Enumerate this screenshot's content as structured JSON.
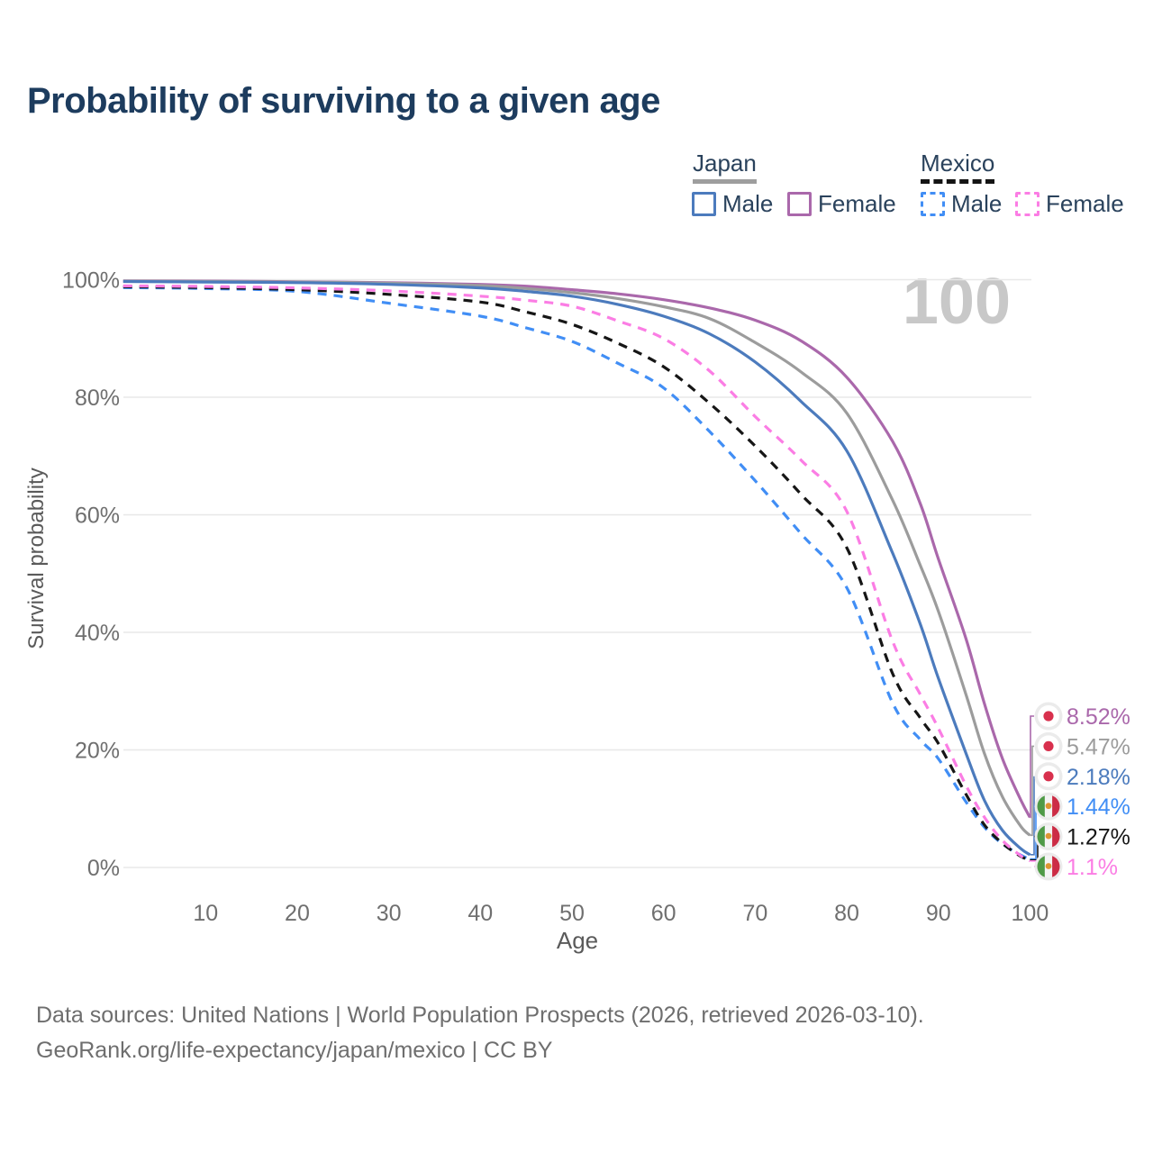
{
  "title": "Probability of surviving to a given age",
  "watermark": "100",
  "legend": {
    "groups": [
      {
        "name": "Japan",
        "style": "solid",
        "underline_color": "#9e9e9e",
        "items": [
          {
            "label": "Male",
            "color": "#4c7bbd"
          },
          {
            "label": "Female",
            "color": "#aa68ab"
          }
        ]
      },
      {
        "name": "Mexico",
        "style": "dashed",
        "underline_color": "#141414",
        "items": [
          {
            "label": "Male",
            "color": "#418ef5"
          },
          {
            "label": "Female",
            "color": "#fb7de4"
          }
        ]
      }
    ]
  },
  "chart_data": {
    "type": "line",
    "title": "Probability of surviving to a given age",
    "xlabel": "Age",
    "ylabel": "Survival probability",
    "xlim": [
      0,
      100
    ],
    "ylim": [
      0,
      100
    ],
    "x_ticks": [
      10,
      20,
      30,
      40,
      50,
      60,
      70,
      80,
      90,
      100
    ],
    "y_ticks": [
      0,
      20,
      40,
      60,
      80,
      100
    ],
    "y_tick_suffix": "%",
    "grid": "horizontal",
    "legend_position": "top-right",
    "age_cursor": 100,
    "series": [
      {
        "name": "Japan Female",
        "country": "Japan",
        "sex": "Female",
        "color": "#aa68ab",
        "line": "solid",
        "flag": "japan",
        "end_label": "8.52%",
        "points": [
          [
            1,
            99.8
          ],
          [
            10,
            99.75
          ],
          [
            20,
            99.65
          ],
          [
            30,
            99.5
          ],
          [
            40,
            99.2
          ],
          [
            45,
            98.9
          ],
          [
            50,
            98.3
          ],
          [
            55,
            97.6
          ],
          [
            60,
            96.6
          ],
          [
            65,
            95.2
          ],
          [
            70,
            93.1
          ],
          [
            75,
            89.6
          ],
          [
            80,
            83.4
          ],
          [
            85,
            72.5
          ],
          [
            88,
            62.0
          ],
          [
            90,
            52.5
          ],
          [
            93,
            39.0
          ],
          [
            95,
            28.0
          ],
          [
            97,
            18.5
          ],
          [
            99,
            11.5
          ],
          [
            100,
            8.52
          ]
        ]
      },
      {
        "name": "Japan Both sexes",
        "country": "Japan",
        "sex": "Both",
        "color": "#9c9c9c",
        "line": "solid",
        "flag": "japan",
        "end_label": "5.47%",
        "points": [
          [
            1,
            99.75
          ],
          [
            10,
            99.7
          ],
          [
            20,
            99.6
          ],
          [
            30,
            99.4
          ],
          [
            40,
            99.0
          ],
          [
            45,
            98.5
          ],
          [
            50,
            97.8
          ],
          [
            55,
            96.8
          ],
          [
            60,
            95.4
          ],
          [
            65,
            93.4
          ],
          [
            70,
            89.3
          ],
          [
            75,
            84.3
          ],
          [
            80,
            77.3
          ],
          [
            85,
            62.5
          ],
          [
            88,
            51.5
          ],
          [
            90,
            43.6
          ],
          [
            93,
            29.5
          ],
          [
            95,
            19.5
          ],
          [
            97,
            12.0
          ],
          [
            99,
            7.0
          ],
          [
            100,
            5.47
          ]
        ]
      },
      {
        "name": "Japan Male",
        "country": "Japan",
        "sex": "Male",
        "color": "#4c7bbd",
        "line": "solid",
        "flag": "japan",
        "end_label": "2.18%",
        "points": [
          [
            1,
            99.7
          ],
          [
            10,
            99.6
          ],
          [
            20,
            99.5
          ],
          [
            30,
            99.2
          ],
          [
            40,
            98.6
          ],
          [
            45,
            98.0
          ],
          [
            50,
            97.2
          ],
          [
            55,
            95.8
          ],
          [
            60,
            93.8
          ],
          [
            65,
            90.8
          ],
          [
            70,
            86.0
          ],
          [
            75,
            79.3
          ],
          [
            80,
            70.9
          ],
          [
            85,
            53.5
          ],
          [
            88,
            41.5
          ],
          [
            90,
            32.2
          ],
          [
            93,
            19.5
          ],
          [
            95,
            11.5
          ],
          [
            97,
            6.3
          ],
          [
            99,
            3.2
          ],
          [
            100,
            2.18
          ]
        ]
      },
      {
        "name": "Mexico Male",
        "country": "Mexico",
        "sex": "Male",
        "color": "#418ef5",
        "line": "dashed",
        "flag": "mexico",
        "end_label": "1.44%",
        "points": [
          [
            1,
            98.65
          ],
          [
            10,
            98.5
          ],
          [
            20,
            98.0
          ],
          [
            30,
            96.0
          ],
          [
            40,
            93.8
          ],
          [
            45,
            91.8
          ],
          [
            50,
            89.5
          ],
          [
            55,
            85.8
          ],
          [
            60,
            81.6
          ],
          [
            65,
            74.2
          ],
          [
            70,
            65.8
          ],
          [
            75,
            56.8
          ],
          [
            80,
            47.6
          ],
          [
            85,
            28.0
          ],
          [
            88,
            21.8
          ],
          [
            90,
            18.5
          ],
          [
            93,
            11.2
          ],
          [
            95,
            6.9
          ],
          [
            97,
            4.0
          ],
          [
            99,
            2.1
          ],
          [
            100,
            1.44
          ]
        ]
      },
      {
        "name": "Mexico Both sexes",
        "country": "Mexico",
        "sex": "Both",
        "color": "#161616",
        "line": "dashed",
        "flag": "mexico",
        "end_label": "1.27%",
        "points": [
          [
            1,
            98.8
          ],
          [
            10,
            98.65
          ],
          [
            20,
            98.3
          ],
          [
            30,
            97.5
          ],
          [
            40,
            96.2
          ],
          [
            45,
            94.5
          ],
          [
            50,
            92.4
          ],
          [
            55,
            89.2
          ],
          [
            60,
            85.2
          ],
          [
            65,
            79.0
          ],
          [
            70,
            71.7
          ],
          [
            75,
            63.5
          ],
          [
            80,
            54.4
          ],
          [
            85,
            33.0
          ],
          [
            88,
            25.5
          ],
          [
            90,
            21.1
          ],
          [
            93,
            12.5
          ],
          [
            95,
            7.3
          ],
          [
            97,
            4.1
          ],
          [
            99,
            1.9
          ],
          [
            100,
            1.27
          ]
        ]
      },
      {
        "name": "Mexico Female",
        "country": "Mexico",
        "sex": "Female",
        "color": "#fb7de4",
        "line": "dashed",
        "flag": "mexico",
        "end_label": "1.1%",
        "points": [
          [
            1,
            98.95
          ],
          [
            10,
            98.85
          ],
          [
            20,
            98.6
          ],
          [
            30,
            98.1
          ],
          [
            40,
            97.2
          ],
          [
            45,
            96.5
          ],
          [
            50,
            95.5
          ],
          [
            55,
            93.0
          ],
          [
            60,
            90.0
          ],
          [
            65,
            84.5
          ],
          [
            70,
            76.7
          ],
          [
            75,
            69.3
          ],
          [
            80,
            60.6
          ],
          [
            85,
            38.5
          ],
          [
            88,
            29.5
          ],
          [
            90,
            23.7
          ],
          [
            93,
            14.0
          ],
          [
            95,
            8.6
          ],
          [
            97,
            4.6
          ],
          [
            99,
            2.0
          ],
          [
            100,
            1.1
          ]
        ]
      }
    ]
  },
  "footer": {
    "line1": "Data sources: United Nations | World Population Prospects (2026, retrieved 2026-03-10).",
    "line2": "GeoRank.org/life-expectancy/japan/mexico | CC BY"
  }
}
